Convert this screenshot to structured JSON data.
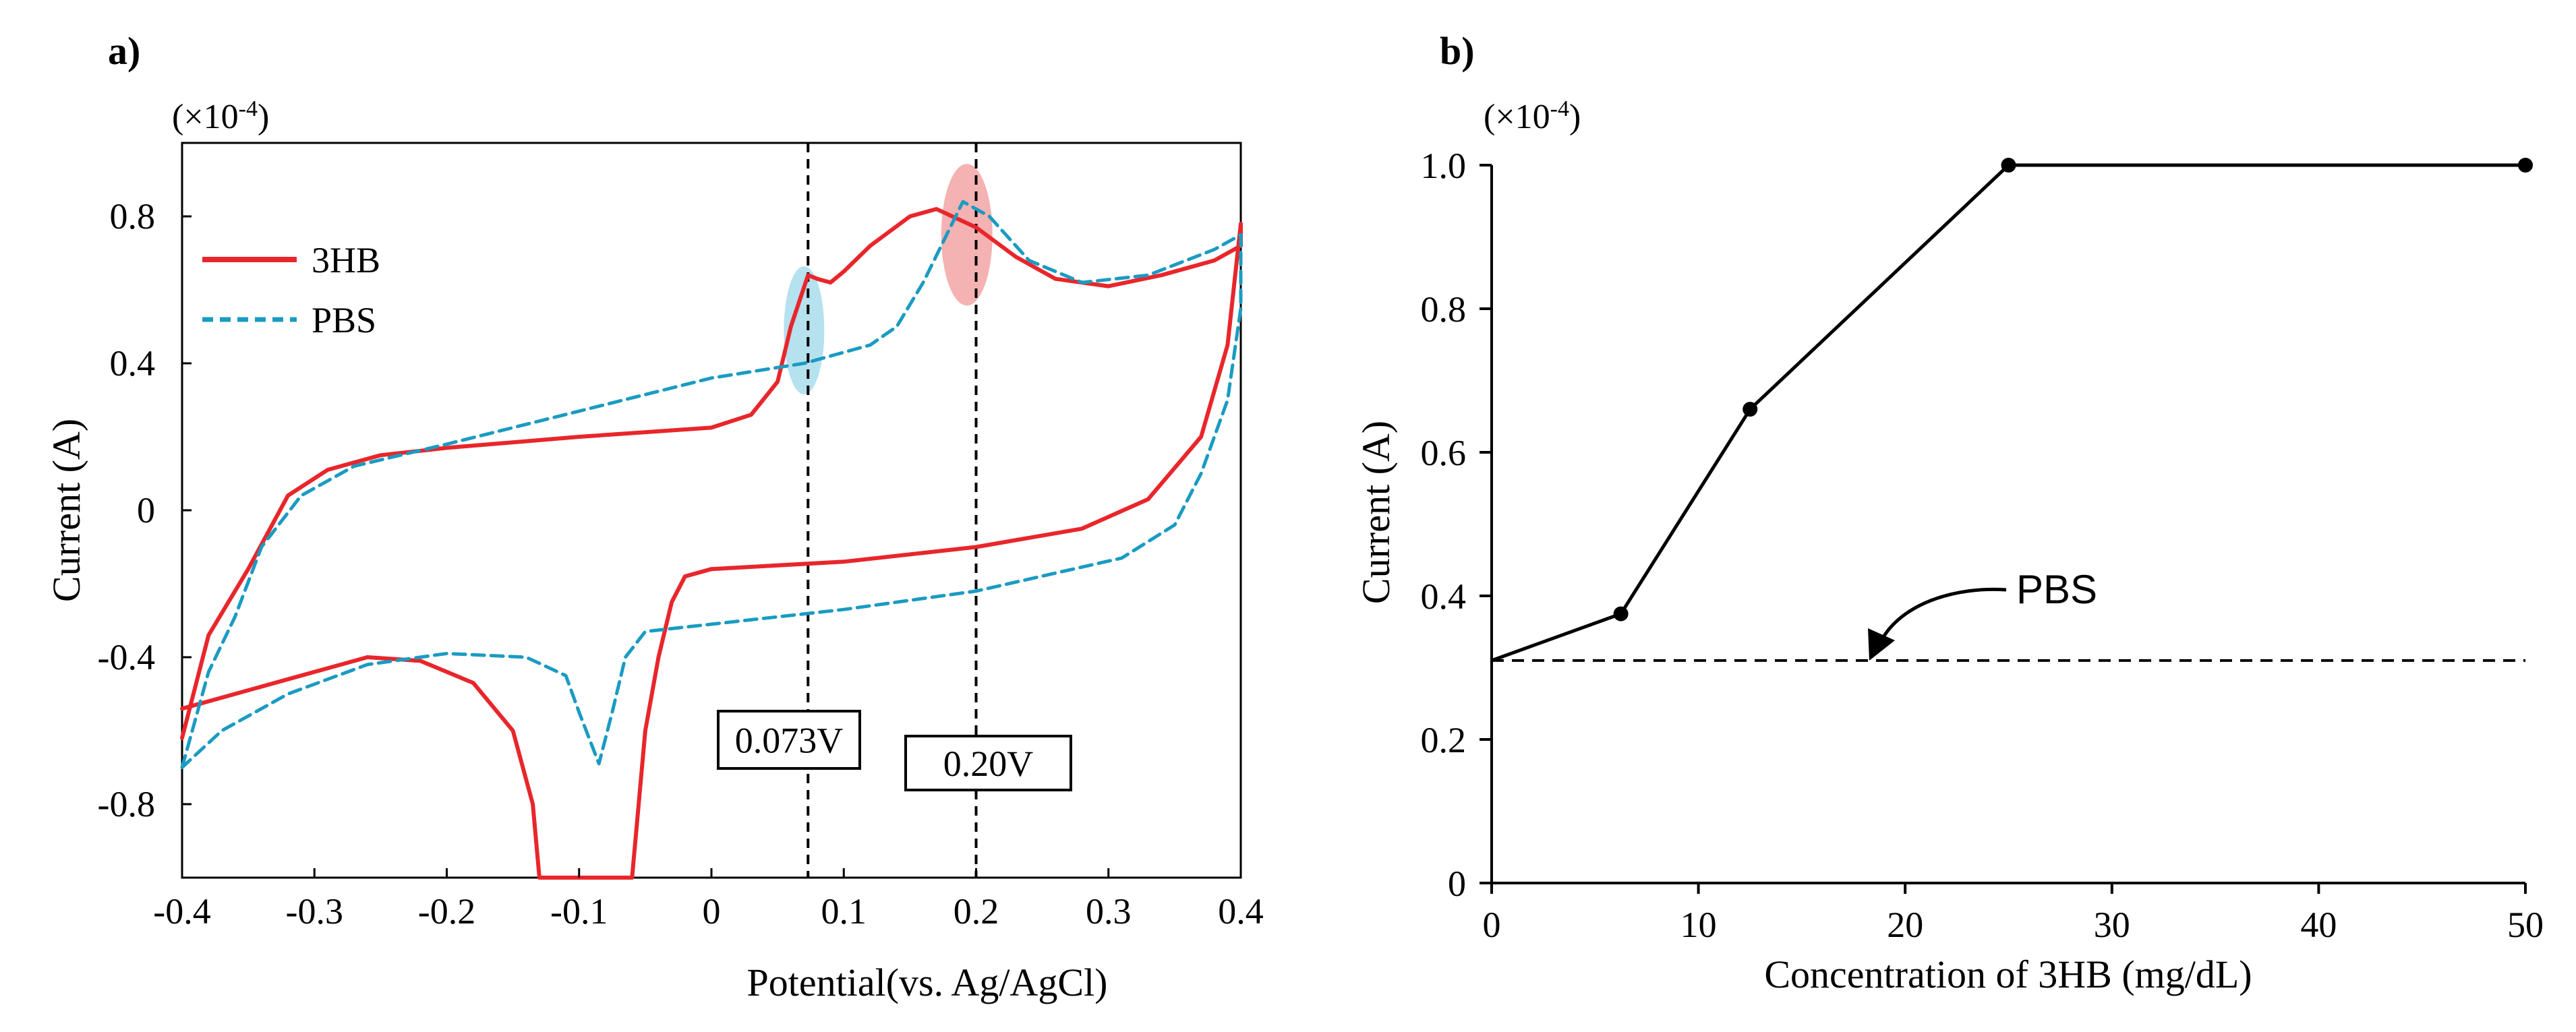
{
  "chart_data": [
    {
      "panel_label": "a)",
      "type": "line",
      "xlabel": "Potential(vs. Ag/AgCl)",
      "ylabel": "Current (A)",
      "y_multiplier": "(×10-4)",
      "xlim": [
        -0.4,
        0.4
      ],
      "ylim": [
        -1.0,
        1.0
      ],
      "xticks": [
        -0.4,
        -0.3,
        -0.2,
        -0.1,
        0,
        0.1,
        0.2,
        0.3,
        0.4
      ],
      "xtick_labels": [
        "-0.4",
        "-0.3",
        "-0.2",
        "-0.1",
        "0",
        "0.1",
        "0.2",
        "0.3",
        "0.4"
      ],
      "yticks": [
        0.8,
        0.4,
        0,
        -0.4,
        -0.8
      ],
      "ytick_labels": [
        "0.8",
        "0.4",
        "0",
        "-0.4",
        "-0.8"
      ],
      "legend": {
        "placement": "upper-left",
        "entries": [
          "3HB",
          "PBS"
        ]
      },
      "series": [
        {
          "name": "3HB",
          "color": "#e8262b",
          "style": "solid",
          "points": [
            [
              -0.4,
              -0.62
            ],
            [
              -0.38,
              -0.34
            ],
            [
              -0.35,
              -0.16
            ],
            [
              -0.32,
              0.04
            ],
            [
              -0.29,
              0.11
            ],
            [
              -0.25,
              0.15
            ],
            [
              -0.2,
              0.17
            ],
            [
              -0.1,
              0.2
            ],
            [
              0.0,
              0.225
            ],
            [
              0.03,
              0.26
            ],
            [
              0.05,
              0.35
            ],
            [
              0.06,
              0.5
            ],
            [
              0.073,
              0.64
            ],
            [
              0.08,
              0.63
            ],
            [
              0.09,
              0.62
            ],
            [
              0.1,
              0.65
            ],
            [
              0.12,
              0.72
            ],
            [
              0.15,
              0.8
            ],
            [
              0.17,
              0.82
            ],
            [
              0.2,
              0.77
            ],
            [
              0.23,
              0.69
            ],
            [
              0.26,
              0.63
            ],
            [
              0.3,
              0.61
            ],
            [
              0.34,
              0.64
            ],
            [
              0.38,
              0.68
            ],
            [
              0.4,
              0.72
            ],
            [
              0.4,
              0.78
            ],
            [
              0.39,
              0.45
            ],
            [
              0.37,
              0.2
            ],
            [
              0.33,
              0.03
            ],
            [
              0.28,
              -0.05
            ],
            [
              0.2,
              -0.1
            ],
            [
              0.1,
              -0.14
            ],
            [
              0.0,
              -0.16
            ],
            [
              -0.02,
              -0.18
            ],
            [
              -0.03,
              -0.25
            ],
            [
              -0.04,
              -0.4
            ],
            [
              -0.05,
              -0.6
            ],
            [
              -0.055,
              -0.8
            ],
            [
              -0.06,
              -1.0
            ],
            [
              -0.13,
              -1.0
            ],
            [
              -0.135,
              -0.8
            ],
            [
              -0.15,
              -0.6
            ],
            [
              -0.18,
              -0.47
            ],
            [
              -0.22,
              -0.41
            ],
            [
              -0.26,
              -0.4
            ],
            [
              -0.32,
              -0.46
            ],
            [
              -0.4,
              -0.54
            ]
          ]
        },
        {
          "name": "PBS",
          "color": "#1a9bc2",
          "style": "dashed",
          "points": [
            [
              -0.4,
              -0.7
            ],
            [
              -0.38,
              -0.44
            ],
            [
              -0.36,
              -0.29
            ],
            [
              -0.34,
              -0.1
            ],
            [
              -0.31,
              0.04
            ],
            [
              -0.27,
              0.12
            ],
            [
              -0.2,
              0.18
            ],
            [
              -0.1,
              0.27
            ],
            [
              0.0,
              0.36
            ],
            [
              0.07,
              0.4
            ],
            [
              0.12,
              0.45
            ],
            [
              0.14,
              0.5
            ],
            [
              0.16,
              0.62
            ],
            [
              0.19,
              0.84
            ],
            [
              0.21,
              0.8
            ],
            [
              0.24,
              0.68
            ],
            [
              0.28,
              0.62
            ],
            [
              0.33,
              0.64
            ],
            [
              0.38,
              0.71
            ],
            [
              0.4,
              0.75
            ],
            [
              0.4,
              0.55
            ],
            [
              0.39,
              0.3
            ],
            [
              0.37,
              0.1
            ],
            [
              0.35,
              -0.04
            ],
            [
              0.31,
              -0.13
            ],
            [
              0.2,
              -0.22
            ],
            [
              0.1,
              -0.27
            ],
            [
              0.0,
              -0.31
            ],
            [
              -0.05,
              -0.33
            ],
            [
              -0.065,
              -0.4
            ],
            [
              -0.075,
              -0.55
            ],
            [
              -0.085,
              -0.69
            ],
            [
              -0.1,
              -0.55
            ],
            [
              -0.11,
              -0.45
            ],
            [
              -0.14,
              -0.4
            ],
            [
              -0.2,
              -0.39
            ],
            [
              -0.26,
              -0.42
            ],
            [
              -0.32,
              -0.5
            ],
            [
              -0.37,
              -0.6
            ],
            [
              -0.4,
              -0.7
            ]
          ]
        }
      ],
      "vlines": [
        0.073,
        0.2
      ],
      "annotations": [
        {
          "text": "0.073V",
          "x": 0.073
        },
        {
          "text": "0.20V",
          "x": 0.2
        }
      ],
      "highlights": [
        {
          "x": 0.07,
          "y": 0.49,
          "color": "#a9dceb"
        },
        {
          "x": 0.193,
          "y": 0.75,
          "color": "#f3a5a4"
        }
      ]
    },
    {
      "panel_label": "b)",
      "type": "line",
      "xlabel": "Concentration of 3HB (mg/dL)",
      "ylabel": "Current (A)",
      "y_multiplier": "(×10-4)",
      "xlim": [
        0,
        50
      ],
      "ylim": [
        0,
        1.0
      ],
      "xticks": [
        0,
        10,
        20,
        30,
        40,
        50
      ],
      "xtick_labels": [
        "0",
        "10",
        "20",
        "30",
        "40",
        "50"
      ],
      "yticks": [
        0,
        0.2,
        0.4,
        0.6,
        0.8,
        1.0
      ],
      "ytick_labels": [
        "0",
        "0.2",
        "0.4",
        "0.6",
        "0.8",
        "1.0"
      ],
      "series": [
        {
          "name": "3HB",
          "color": "#000000",
          "x": [
            0,
            6.25,
            12.5,
            25,
            50
          ],
          "values": [
            0.31,
            0.375,
            0.66,
            1.0,
            1.0
          ]
        }
      ],
      "baseline": {
        "name": "PBS",
        "value": 0.31
      },
      "annotation": "PBS"
    }
  ]
}
